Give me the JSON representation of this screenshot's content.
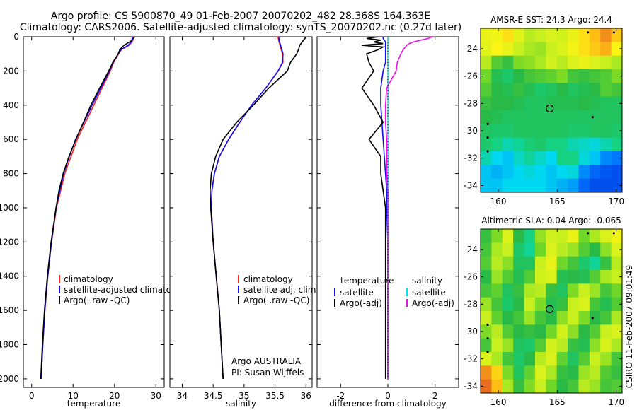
{
  "header": {
    "title_line1": "Argo profile: CS 5900870_49 01-Feb-2007 20070202_482 28.368S 164.363E",
    "title_line2": "Climatology: CARS2006. Satellite-adjusted climatology: synTS_20070202.nc (0.27d later)"
  },
  "side_label": "CSIRO 11-Feb-2007 09:01:49",
  "colors": {
    "climatology": "#ff2020",
    "satellite": "#1010ee",
    "argo": "#000000",
    "salinity_satellite": "#00e5ee",
    "salinity_argo": "#ee11ee"
  },
  "chart_data": [
    {
      "type": "line",
      "id": "temperature",
      "xlabel": "temperature",
      "xlim": [
        -2,
        32
      ],
      "ylim": [
        2050,
        0
      ],
      "xticks": [
        0,
        10,
        20,
        30
      ],
      "yticks": [
        0,
        200,
        400,
        600,
        800,
        1000,
        1200,
        1400,
        1600,
        1800,
        2000
      ],
      "legend": [
        "climatology",
        "satellite-adjusted climatology",
        "Argo(..raw -QC)"
      ],
      "depth": [
        0,
        25,
        50,
        75,
        100,
        150,
        200,
        300,
        400,
        500,
        600,
        700,
        800,
        900,
        1000,
        1200,
        1400,
        1600,
        1800,
        2000
      ],
      "series": [
        {
          "name": "climatology",
          "color_key": "climatology",
          "values": [
            24.5,
            24.4,
            23.5,
            21.7,
            21.0,
            19.8,
            19.0,
            17.0,
            15.0,
            13.0,
            11.0,
            9.5,
            8.0,
            7.0,
            6.0,
            4.8,
            3.9,
            3.2,
            2.7,
            2.3
          ]
        },
        {
          "name": "satellite-adjusted climatology",
          "color_key": "satellite",
          "values": [
            24.3,
            24.2,
            23.3,
            21.6,
            20.9,
            19.7,
            18.8,
            16.7,
            14.6,
            12.6,
            10.6,
            9.1,
            7.7,
            6.8,
            5.9,
            4.8,
            3.9,
            3.2,
            2.7,
            2.3
          ]
        },
        {
          "name": "Argo(..raw -QC)",
          "color_key": "argo",
          "values": [
            24.9,
            24.0,
            22.3,
            21.3,
            20.9,
            19.6,
            18.6,
            16.4,
            14.3,
            12.5,
            10.7,
            9.0,
            7.6,
            6.6,
            5.9,
            4.7,
            3.8,
            3.1,
            2.6,
            2.2
          ]
        }
      ]
    },
    {
      "type": "line",
      "id": "salinity",
      "xlabel": "salinity",
      "xlim": [
        33.8,
        36.1
      ],
      "ylim": [
        2050,
        0
      ],
      "xticks": [
        34,
        34.5,
        35,
        35.5,
        36
      ],
      "legend": [
        "climatology",
        "satellite adj. clim.",
        "Argo(..raw -QC)"
      ],
      "annotation": [
        "Argo AUSTRALIA",
        "PI: Susan Wijffels"
      ],
      "depth": [
        0,
        25,
        50,
        75,
        100,
        150,
        200,
        300,
        400,
        500,
        600,
        700,
        800,
        900,
        1000,
        1200,
        1400,
        1600,
        1800,
        2000
      ],
      "series": [
        {
          "name": "climatology",
          "color_key": "climatology",
          "values": [
            35.55,
            35.56,
            35.58,
            35.6,
            35.62,
            35.63,
            35.55,
            35.35,
            35.12,
            34.93,
            34.75,
            34.6,
            34.52,
            34.48,
            34.47,
            34.5,
            34.55,
            34.6,
            34.63,
            34.66
          ]
        },
        {
          "name": "satellite adj. clim.",
          "color_key": "satellite",
          "values": [
            35.56,
            35.57,
            35.59,
            35.61,
            35.63,
            35.62,
            35.55,
            35.35,
            35.12,
            34.93,
            34.75,
            34.6,
            34.52,
            34.48,
            34.47,
            34.5,
            34.55,
            34.6,
            34.63,
            34.66
          ]
        },
        {
          "name": "Argo(..raw -QC)",
          "color_key": "argo",
          "values": [
            36.0,
            35.95,
            35.9,
            35.88,
            35.85,
            35.75,
            35.7,
            35.4,
            35.15,
            34.88,
            34.66,
            34.54,
            34.47,
            34.45,
            34.46,
            34.5,
            34.55,
            34.6,
            34.63,
            34.66
          ]
        }
      ]
    },
    {
      "type": "line",
      "id": "difference",
      "xlabel": "difference from climatology",
      "xlim": [
        -3,
        3
      ],
      "ylim": [
        2050,
        0
      ],
      "xticks": [
        -2,
        0,
        2
      ],
      "legend_title_temperature": "temperature",
      "legend_title_salinity": "salinity",
      "legend_left": [
        "satellite",
        "Argo(-adj)"
      ],
      "legend_right": [
        "satellite",
        "Argo(-adj)"
      ],
      "depth": [
        0,
        10,
        20,
        30,
        40,
        50,
        60,
        75,
        100,
        150,
        200,
        300,
        400,
        500,
        600,
        700,
        800,
        900,
        1000,
        1200,
        1400,
        1600,
        1800,
        2000
      ],
      "series": [
        {
          "name": "temperature satellite",
          "color_key": "satellite",
          "values": [
            -0.2,
            -0.2,
            -0.15,
            -0.1,
            -0.1,
            -0.1,
            -0.1,
            -0.1,
            -0.1,
            -0.1,
            -0.2,
            -0.3,
            -0.3,
            -0.25,
            -0.2,
            -0.15,
            -0.1,
            -0.05,
            -0.05,
            0.0,
            0.0,
            0.0,
            0.0,
            0.0
          ]
        },
        {
          "name": "temperature Argo(-adj)",
          "color_key": "argo",
          "values": [
            -0.4,
            -0.9,
            -0.3,
            -0.6,
            -0.2,
            -1.1,
            -0.2,
            -0.4,
            -0.9,
            -0.8,
            -0.6,
            -1.1,
            -0.6,
            -0.2,
            -0.8,
            -0.3,
            -0.3,
            -0.2,
            -0.1,
            -0.1,
            -0.1,
            -0.1,
            -0.1,
            -0.1
          ]
        },
        {
          "name": "salinity satellite",
          "color_key": "salinity_satellite",
          "values": [
            0.0,
            0.0,
            0.0,
            0.0,
            0.0,
            0.0,
            0.0,
            0.0,
            0.0,
            0.0,
            0.0,
            0.0,
            0.0,
            0.0,
            0.0,
            0.0,
            0.0,
            0.0,
            0.0,
            0.0,
            0.0,
            0.0,
            0.0,
            0.0
          ]
        },
        {
          "name": "salinity Argo(-adj)",
          "color_key": "salinity_argo",
          "values": [
            1.9,
            1.7,
            1.4,
            1.1,
            0.9,
            0.8,
            0.75,
            0.65,
            0.55,
            0.4,
            0.35,
            -0.05,
            -0.1,
            -0.1,
            -0.05,
            -0.05,
            -0.05,
            0.0,
            0.0,
            0.0,
            0.0,
            0.0,
            0.0,
            0.0
          ]
        }
      ]
    },
    {
      "type": "heatmap",
      "id": "sst_map",
      "title": "AMSR-E SST: 24.3  Argo: 24.4",
      "xlim": [
        158.5,
        170.5
      ],
      "ylim": [
        -34.5,
        -22.5
      ],
      "xticks": [
        160,
        165,
        170
      ],
      "yticks": [
        -24,
        -26,
        -28,
        -30,
        -32,
        -34
      ],
      "profile_location": {
        "lon": 164.363,
        "lat": -28.368
      },
      "markers": [
        {
          "lon": 159.1,
          "lat": -29.5
        },
        {
          "lon": 159.1,
          "lat": -30.5
        },
        {
          "lon": 159.1,
          "lat": -31.5
        },
        {
          "lon": 168.0,
          "lat": -29.0
        },
        {
          "lon": 167.6,
          "lat": -22.8
        },
        {
          "lon": 169.8,
          "lat": -22.8
        }
      ],
      "field": [
        [
          0.7,
          0.72,
          0.78,
          0.68,
          0.6,
          0.62,
          0.66,
          0.64,
          0.7,
          0.78,
          0.84,
          0.9,
          0.82
        ],
        [
          0.68,
          0.74,
          0.7,
          0.62,
          0.58,
          0.56,
          0.62,
          0.66,
          0.72,
          0.78,
          0.82,
          0.86,
          0.74
        ],
        [
          0.6,
          0.46,
          0.42,
          0.52,
          0.54,
          0.58,
          0.64,
          0.6,
          0.66,
          0.7,
          0.66,
          0.62,
          0.58
        ],
        [
          0.5,
          0.38,
          0.34,
          0.4,
          0.44,
          0.46,
          0.48,
          0.52,
          0.44,
          0.42,
          0.44,
          0.46,
          0.52
        ],
        [
          0.46,
          0.4,
          0.38,
          0.42,
          0.38,
          0.34,
          0.36,
          0.4,
          0.36,
          0.38,
          0.4,
          0.46,
          0.44
        ],
        [
          0.42,
          0.4,
          0.4,
          0.38,
          0.36,
          0.36,
          0.38,
          0.38,
          0.38,
          0.4,
          0.38,
          0.36,
          0.36
        ],
        [
          0.4,
          0.38,
          0.36,
          0.36,
          0.36,
          0.36,
          0.36,
          0.36,
          0.36,
          0.36,
          0.36,
          0.36,
          0.36
        ],
        [
          0.36,
          0.34,
          0.34,
          0.36,
          0.36,
          0.36,
          0.36,
          0.36,
          0.34,
          0.34,
          0.36,
          0.36,
          0.34
        ],
        [
          0.34,
          0.3,
          0.26,
          0.28,
          0.32,
          0.34,
          0.3,
          0.3,
          0.26,
          0.24,
          0.22,
          0.26,
          0.3
        ],
        [
          0.26,
          0.2,
          0.18,
          0.24,
          0.28,
          0.24,
          0.2,
          0.3,
          0.3,
          0.22,
          0.18,
          0.12,
          0.1
        ],
        [
          0.18,
          0.16,
          0.18,
          0.2,
          0.22,
          0.2,
          0.18,
          0.2,
          0.22,
          0.12,
          0.08,
          0.06,
          0.05
        ],
        [
          0.18,
          0.18,
          0.2,
          0.2,
          0.2,
          0.2,
          0.18,
          0.16,
          0.14,
          0.08,
          0.05,
          0.05,
          0.05
        ]
      ]
    },
    {
      "type": "heatmap",
      "id": "sla_map",
      "title": "Altimetric SLA: 0.04  Argo: -0.065",
      "xlim": [
        158.5,
        170.5
      ],
      "ylim": [
        -34.5,
        -22.5
      ],
      "xticks": [
        160,
        165,
        170
      ],
      "yticks": [
        -24,
        -26,
        -28,
        -30,
        -32,
        -34
      ],
      "profile_location": {
        "lon": 164.363,
        "lat": -28.368
      },
      "markers": [
        {
          "lon": 159.1,
          "lat": -29.5
        },
        {
          "lon": 159.1,
          "lat": -30.5
        },
        {
          "lon": 159.1,
          "lat": -31.5
        },
        {
          "lon": 168.0,
          "lat": -29.0
        },
        {
          "lon": 167.6,
          "lat": -22.8
        },
        {
          "lon": 169.8,
          "lat": -22.8
        }
      ],
      "field": [
        [
          0.42,
          0.52,
          0.66,
          0.4,
          0.3,
          0.55,
          0.64,
          0.62,
          0.7,
          0.5,
          0.58,
          0.66,
          0.72
        ],
        [
          0.44,
          0.58,
          0.62,
          0.34,
          0.28,
          0.5,
          0.66,
          0.6,
          0.56,
          0.46,
          0.4,
          0.54,
          0.66
        ],
        [
          0.46,
          0.6,
          0.54,
          0.36,
          0.36,
          0.62,
          0.7,
          0.5,
          0.44,
          0.34,
          0.28,
          0.42,
          0.6
        ],
        [
          0.4,
          0.56,
          0.46,
          0.38,
          0.46,
          0.64,
          0.66,
          0.38,
          0.4,
          0.38,
          0.46,
          0.58,
          0.62
        ],
        [
          0.44,
          0.48,
          0.36,
          0.42,
          0.58,
          0.6,
          0.42,
          0.36,
          0.52,
          0.62,
          0.56,
          0.44,
          0.5
        ],
        [
          0.56,
          0.44,
          0.34,
          0.4,
          0.62,
          0.52,
          0.38,
          0.42,
          0.62,
          0.66,
          0.44,
          0.38,
          0.46
        ],
        [
          0.62,
          0.48,
          0.4,
          0.44,
          0.56,
          0.44,
          0.4,
          0.54,
          0.62,
          0.52,
          0.4,
          0.44,
          0.58
        ],
        [
          0.52,
          0.6,
          0.46,
          0.4,
          0.42,
          0.4,
          0.5,
          0.64,
          0.54,
          0.4,
          0.46,
          0.62,
          0.66
        ],
        [
          0.44,
          0.62,
          0.56,
          0.36,
          0.34,
          0.46,
          0.64,
          0.6,
          0.42,
          0.38,
          0.54,
          0.66,
          0.58
        ],
        [
          0.66,
          0.58,
          0.44,
          0.34,
          0.4,
          0.6,
          0.66,
          0.48,
          0.36,
          0.46,
          0.62,
          0.56,
          0.44
        ],
        [
          0.9,
          0.8,
          0.52,
          0.36,
          0.48,
          0.66,
          0.58,
          0.42,
          0.4,
          0.56,
          0.6,
          0.46,
          0.42
        ],
        [
          0.94,
          0.84,
          0.58,
          0.42,
          0.52,
          0.62,
          0.5,
          0.4,
          0.44,
          0.6,
          0.56,
          0.44,
          0.46
        ]
      ]
    }
  ]
}
